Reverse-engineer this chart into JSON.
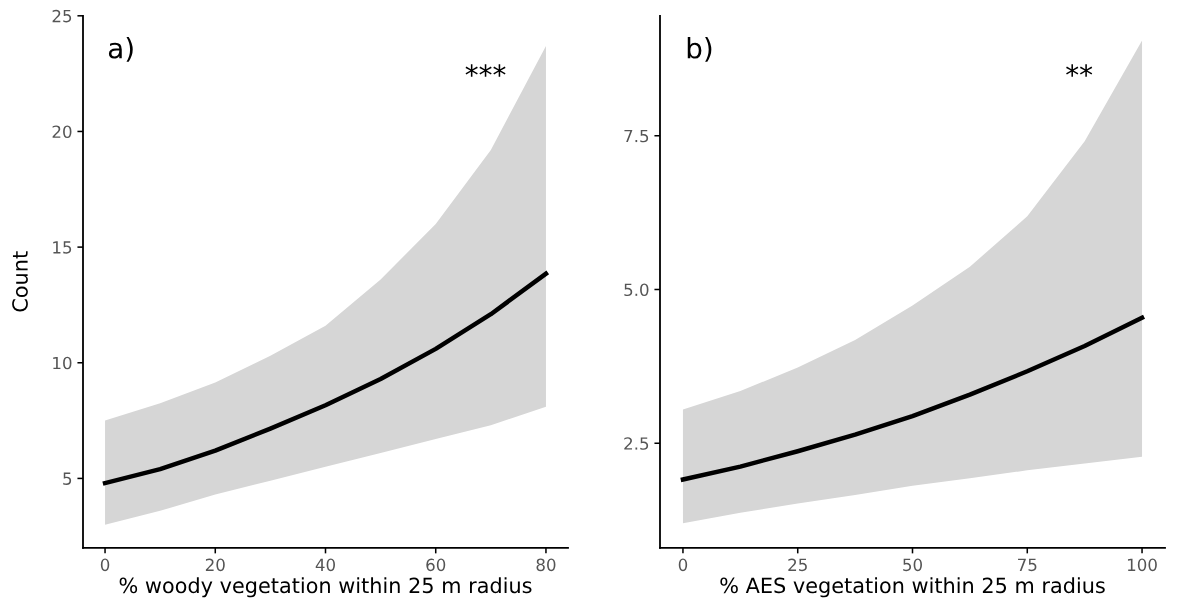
{
  "chart_data": [
    {
      "type": "line",
      "xlabel": "% woody vegetation within 25 m radius",
      "ylabel": "Count",
      "annotations": [
        "a)",
        "***"
      ],
      "x": [
        0,
        10,
        20,
        30,
        40,
        50,
        60,
        70,
        80
      ],
      "series": [
        {
          "color": "#000000",
          "values": [
            4.8,
            5.4,
            6.2,
            7.15,
            8.16,
            9.3,
            10.6,
            12.1,
            13.85
          ],
          "lower": [
            3.0,
            3.6,
            4.3,
            4.9,
            5.5,
            6.1,
            6.7,
            7.3,
            8.1
          ],
          "upper": [
            7.5,
            8.25,
            9.15,
            10.3,
            11.6,
            13.6,
            16.0,
            19.2,
            23.7
          ]
        }
      ],
      "xlim": [
        -4,
        84
      ],
      "xticks": [
        0,
        20,
        40,
        60,
        80
      ],
      "ylim": [
        2,
        25
      ],
      "yticks": [
        5,
        10,
        15,
        20,
        25
      ],
      "grid": false,
      "legend": false
    },
    {
      "type": "line",
      "xlabel": "% AES vegetation within 25 m radius",
      "annotations": [
        "b)",
        "**"
      ],
      "x": [
        0,
        12.5,
        25,
        37.5,
        50,
        62.5,
        75,
        87.5,
        100
      ],
      "series": [
        {
          "color": "#000000",
          "values": [
            1.91,
            2.12,
            2.37,
            2.64,
            2.94,
            3.29,
            3.67,
            4.08,
            4.54
          ],
          "lower": [
            1.2,
            1.37,
            1.52,
            1.66,
            1.81,
            1.93,
            2.06,
            2.17,
            2.28
          ],
          "upper": [
            3.05,
            3.35,
            3.73,
            4.18,
            4.74,
            5.37,
            6.19,
            7.41,
            9.05
          ]
        }
      ],
      "xlim": [
        -5,
        105
      ],
      "xticks": [
        0,
        25,
        50,
        75,
        100
      ],
      "ylim": [
        0.8,
        9.45
      ],
      "yticks": [
        {
          "value": 2.5,
          "label": "2.5"
        },
        {
          "value": 5.0,
          "label": "5.0"
        },
        {
          "value": 7.5,
          "label": "7.5"
        }
      ],
      "grid": false,
      "legend": false
    }
  ]
}
